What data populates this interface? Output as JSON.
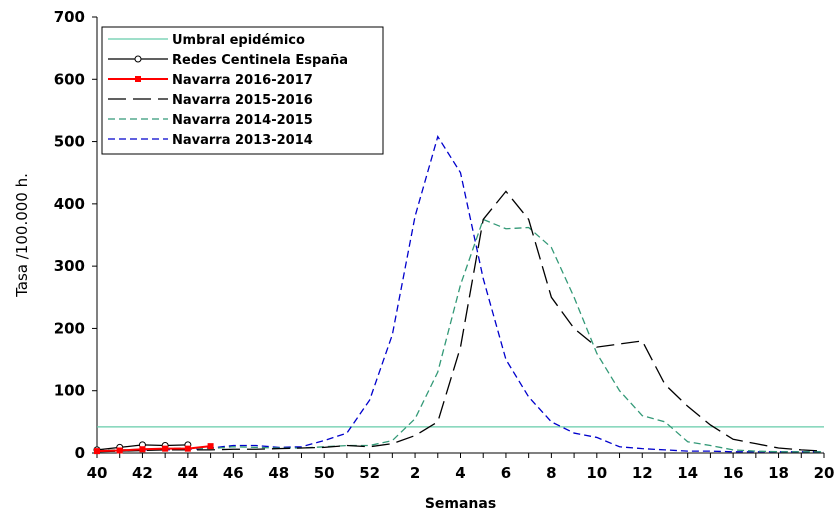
{
  "chart_data": {
    "type": "line",
    "xlabel": "Semanas",
    "ylabel": "Tasa /100.000 h.",
    "ylim": [
      0,
      700
    ],
    "yticks": [
      "0",
      "100",
      "200",
      "300",
      "400",
      "500",
      "600",
      "700"
    ],
    "week_order": [
      40,
      41,
      42,
      43,
      44,
      45,
      46,
      47,
      48,
      49,
      50,
      51,
      52,
      1,
      2,
      3,
      4,
      5,
      6,
      7,
      8,
      9,
      10,
      11,
      12,
      13,
      14,
      15,
      16,
      17,
      18,
      19,
      20
    ],
    "xtick_labels": [
      "40",
      "42",
      "44",
      "46",
      "48",
      "50",
      "52",
      "2",
      "4",
      "6",
      "8",
      "10",
      "12",
      "14",
      "16",
      "18",
      "20"
    ],
    "legend_position": "top-left",
    "grid": false,
    "series": [
      {
        "name": "Umbral epidémico",
        "color": "#66CCAA",
        "dash": "solid",
        "marker": "none",
        "values": [
          42,
          42,
          42,
          42,
          42,
          42,
          42,
          42,
          42,
          42,
          42,
          42,
          42,
          42,
          42,
          42,
          42,
          42,
          42,
          42,
          42,
          42,
          42,
          42,
          42,
          42,
          42,
          42,
          42,
          42,
          42,
          42,
          42
        ]
      },
      {
        "name": "Redes Centinela España",
        "color": "#000000",
        "dash": "solid",
        "marker": "open-circle",
        "values": [
          5,
          9,
          13,
          12,
          13,
          null,
          null,
          null,
          null,
          null,
          null,
          null,
          null,
          null,
          null,
          null,
          null,
          null,
          null,
          null,
          null,
          null,
          null,
          null,
          null,
          null,
          null,
          null,
          null,
          null,
          null,
          null,
          null
        ]
      },
      {
        "name": "Navarra 2016-2017",
        "color": "#FF0000",
        "dash": "solid",
        "marker": "filled-square",
        "values": [
          3,
          4,
          6,
          7,
          7,
          11,
          null,
          null,
          null,
          null,
          null,
          null,
          null,
          null,
          null,
          null,
          null,
          null,
          null,
          null,
          null,
          null,
          null,
          null,
          null,
          null,
          null,
          null,
          null,
          null,
          null,
          null,
          null
        ]
      },
      {
        "name": "Navarra 2015-2016",
        "color": "#000000",
        "dash": "long-dash",
        "marker": "none",
        "values": [
          2,
          3,
          4,
          5,
          5,
          5,
          6,
          6,
          7,
          8,
          9,
          12,
          10,
          15,
          28,
          50,
          170,
          375,
          420,
          375,
          250,
          200,
          170,
          175,
          180,
          110,
          75,
          45,
          22,
          15,
          8,
          5,
          3
        ]
      },
      {
        "name": "Navarra 2014-2015",
        "color": "#339977",
        "dash": "dash",
        "marker": "none",
        "values": [
          4,
          5,
          6,
          7,
          8,
          7,
          10,
          9,
          8,
          8,
          10,
          12,
          12,
          20,
          55,
          130,
          270,
          375,
          360,
          362,
          330,
          250,
          160,
          100,
          60,
          50,
          18,
          12,
          5,
          3,
          2,
          2,
          2
        ]
      },
      {
        "name": "Navarra 2013-2014",
        "color": "#0000CC",
        "dash": "dash",
        "marker": "none",
        "values": [
          4,
          4,
          5,
          5,
          6,
          8,
          12,
          12,
          9,
          10,
          20,
          32,
          85,
          190,
          380,
          508,
          450,
          280,
          150,
          90,
          50,
          32,
          25,
          10,
          7,
          5,
          3,
          3,
          2,
          2,
          2,
          2,
          2
        ]
      }
    ]
  }
}
